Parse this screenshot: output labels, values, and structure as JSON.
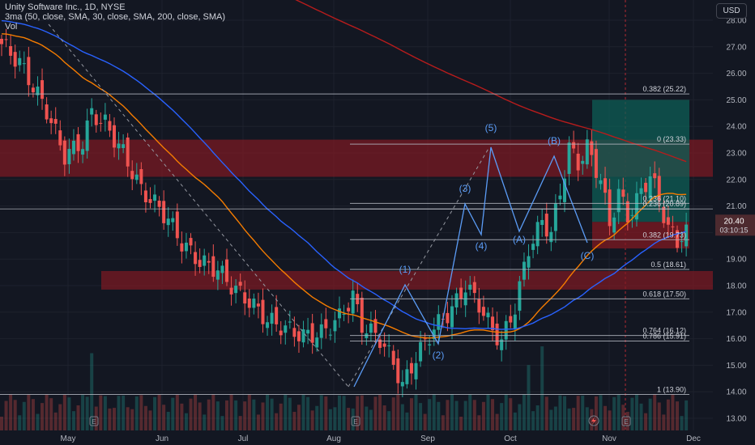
{
  "header": {
    "title": "Unity Software Inc., 1D, NYSE",
    "indicators_line": "3ma (50, close, SMA, 30, close, SMA, 200, close, SMA)",
    "volume_label": "Vol"
  },
  "currency_button": "USD",
  "colors": {
    "background": "#131722",
    "up_candle": "#26a69a",
    "down_candle": "#ef5350",
    "sma30": "#f57c00",
    "sma50": "#2962ff",
    "sma200": "#b71c1c",
    "wave_label": "#5b9cf6",
    "zone_red": "#801922",
    "zone_green": "#0e5e55"
  },
  "price_tag": {
    "price": "20.40",
    "countdown": "03:10:15"
  },
  "icons": {
    "event_marker": "earnings-E-icon",
    "flash": "lightning-icon"
  },
  "chart_data": {
    "type": "candlestick",
    "symbol": "Unity Software Inc.",
    "interval": "1D",
    "exchange": "NYSE",
    "y_axis": {
      "ticks": [
        13,
        14,
        15,
        16,
        17,
        18,
        19,
        20,
        21,
        22,
        23,
        24,
        25,
        26,
        27,
        28
      ],
      "ylim": [
        12.7,
        28.4
      ]
    },
    "x_axis": {
      "labels": [
        "May",
        "Jun",
        "Jul",
        "Aug",
        "Sep",
        "Oct",
        "Nov",
        "Dec"
      ]
    },
    "ohlc_sampled": [
      [
        0,
        27.1
      ],
      [
        4,
        26.4
      ],
      [
        10,
        24.6
      ],
      [
        14,
        22.9
      ],
      [
        18,
        23.4
      ],
      [
        20,
        24.5
      ],
      [
        23,
        24.1
      ],
      [
        27,
        23.0
      ],
      [
        31,
        21.6
      ],
      [
        34,
        21.1
      ],
      [
        37,
        20.5
      ],
      [
        40,
        19.6
      ],
      [
        44,
        18.9
      ],
      [
        48,
        18.6
      ],
      [
        51,
        18.0
      ],
      [
        55,
        17.4
      ],
      [
        59,
        16.7
      ],
      [
        63,
        16.4
      ],
      [
        67,
        16.1
      ],
      [
        71,
        16.2
      ],
      [
        75,
        16.8
      ],
      [
        78,
        17.6
      ],
      [
        80,
        16.5
      ],
      [
        84,
        16.0
      ],
      [
        87,
        15.1
      ],
      [
        89,
        14.2
      ],
      [
        92,
        15.3
      ],
      [
        96,
        16.4
      ],
      [
        100,
        17.1
      ],
      [
        103,
        18.0
      ],
      [
        106,
        17.3
      ],
      [
        109,
        16.3
      ],
      [
        111,
        15.9
      ],
      [
        114,
        17.2
      ],
      [
        117,
        19.4
      ],
      [
        120,
        20.4
      ],
      [
        122,
        20.0
      ],
      [
        124,
        21.5
      ],
      [
        126,
        23.2
      ],
      [
        128,
        22.6
      ],
      [
        130,
        23.2
      ],
      [
        133,
        22.0
      ],
      [
        135,
        20.3
      ],
      [
        137,
        21.5
      ],
      [
        139,
        20.6
      ],
      [
        142,
        21.5
      ],
      [
        144,
        22.2
      ],
      [
        146,
        21.2
      ],
      [
        148,
        20.2
      ],
      [
        150,
        19.6
      ],
      [
        152,
        20.3
      ]
    ],
    "moving_averages": [
      {
        "name": "SMA 30",
        "length": 30
      },
      {
        "name": "SMA 50",
        "length": 50
      },
      {
        "name": "SMA 200",
        "length": 200
      }
    ],
    "fibonacci_levels": [
      {
        "label": "0 (23.33)",
        "value": 23.33
      },
      {
        "label": "0.236 (21.10)",
        "value": 21.1
      },
      {
        "label": "0.236 (20.89)",
        "value": 20.89
      },
      {
        "label": "0.382 (19.73)",
        "value": 19.73
      },
      {
        "label": "0.5 (18.61)",
        "value": 18.61
      },
      {
        "label": "0.618 (17.50)",
        "value": 17.5
      },
      {
        "label": "0.764 (16.12)",
        "value": 16.12
      },
      {
        "label": "0.786 (15.91)",
        "value": 15.91
      },
      {
        "label": "1 (13.90)",
        "value": 13.9
      },
      {
        "label": "0.382 (25.22)",
        "value": 25.22
      }
    ],
    "elliott_waves": [
      {
        "label": "(1)",
        "price": 18.2
      },
      {
        "label": "(2)",
        "price": 15.7
      },
      {
        "label": "(3)",
        "price": 21.3
      },
      {
        "label": "(4)",
        "price": 19.6
      },
      {
        "label": "(5)",
        "price": 23.5
      },
      {
        "label": "(A)",
        "price": 19.8
      },
      {
        "label": "(B)",
        "price": 22.9
      },
      {
        "label": "(C)",
        "price": 19.3
      }
    ],
    "zones": [
      {
        "kind": "resistance",
        "low": 22.1,
        "high": 23.5
      },
      {
        "kind": "support",
        "low": 17.85,
        "high": 18.55
      },
      {
        "kind": "profit-target",
        "low": 20.4,
        "high": 25.0
      },
      {
        "kind": "stop-loss",
        "low": 19.4,
        "high": 20.4
      }
    ]
  }
}
